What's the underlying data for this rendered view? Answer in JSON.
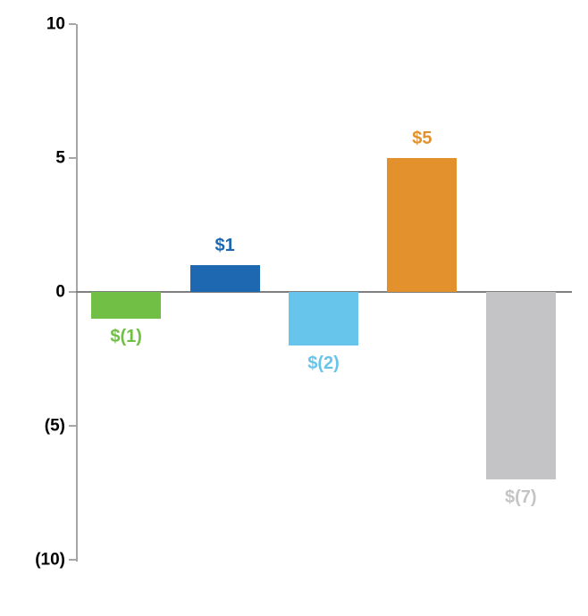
{
  "chart_data": {
    "type": "bar",
    "categories": [
      "bar-1",
      "bar-2",
      "bar-3",
      "bar-4",
      "bar-5"
    ],
    "values": [
      -1,
      1,
      -2,
      5,
      -7
    ],
    "data_labels": [
      "$(1)",
      "$1",
      "$(2)",
      "$5",
      "$(7)"
    ],
    "bar_colors": [
      "#71bf44",
      "#1e68b2",
      "#67c5ec",
      "#e2912d",
      "#c4c4c6"
    ],
    "title": "",
    "xlabel": "",
    "ylabel": "",
    "ylim": [
      -10,
      10
    ],
    "yticks": [
      10,
      5,
      0,
      -5,
      -10
    ],
    "ytick_labels": [
      "10",
      "5",
      "0",
      "(5)",
      "(10)"
    ],
    "grid": false,
    "legend": false
  },
  "axis_style": {
    "axis_line_color": "#a6a6a6",
    "zero_line_color": "#7f7f7f",
    "tick_label_color": "#000000"
  }
}
